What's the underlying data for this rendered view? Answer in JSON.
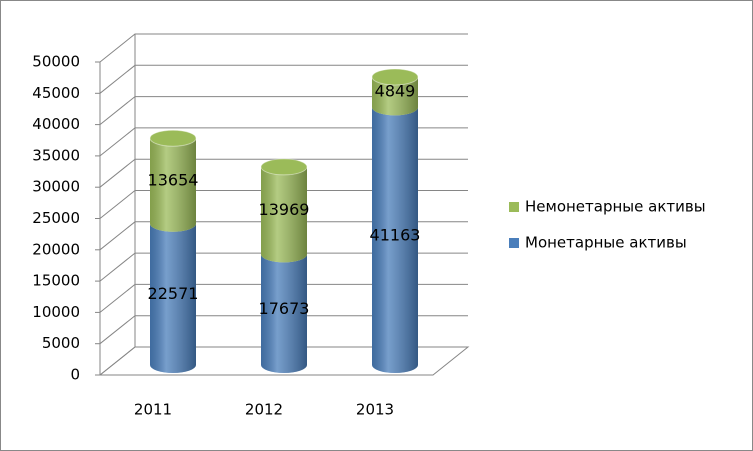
{
  "chart_data": {
    "type": "bar3d_stacked_cylinder",
    "categories": [
      "2011",
      "2012",
      "2013"
    ],
    "series": [
      {
        "name": "Монетарные активы",
        "color": "#4a7ebb",
        "values": [
          22571,
          17673,
          41163
        ]
      },
      {
        "name": "Немонетарные активы",
        "color": "#9bbb59",
        "values": [
          13654,
          13969,
          4849
        ]
      }
    ],
    "ylim": [
      0,
      50000
    ],
    "yticks": [
      0,
      5000,
      10000,
      15000,
      20000,
      25000,
      30000,
      35000,
      40000,
      45000,
      50000
    ],
    "grid": true,
    "legend": "right"
  }
}
